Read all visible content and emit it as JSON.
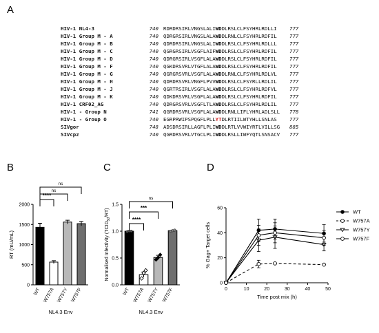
{
  "panel_letters": {
    "a": "A",
    "b": "B",
    "c": "C",
    "d": "D"
  },
  "panelA": {
    "rows": [
      {
        "name": "HIV-1 NL4-3",
        "start": "740",
        "pre": "RDRDRSIRLVNGSLALI",
        "mark": "WD",
        "post": "DLRSLCLFSYHRLRDLLI",
        "end": "777",
        "red": false
      },
      {
        "name": "HIV-1 Group M - A",
        "start": "740",
        "pre": "QDRGRSIRLVNGSLALA",
        "mark": "WD",
        "post": "DLRNLCLFSYHRLRDFIL",
        "end": "777",
        "red": false
      },
      {
        "name": "HIV-1 Group M - B",
        "start": "740",
        "pre": "QDRDRSIRLVNGSLALI",
        "mark": "WD",
        "post": "DLRSLCLFSYHRLRDLLL",
        "end": "777",
        "red": false
      },
      {
        "name": "HIV-1 Group M - C",
        "start": "740",
        "pre": "QGRGRSIRLVSGFLAIF",
        "mark": "WD",
        "post": "DLRSLCLFSYHRLRDFIL",
        "end": "777",
        "red": false
      },
      {
        "name": "HIV-1 Group M - D",
        "start": "740",
        "pre": "QDRGRSIRLVSGFLALA",
        "mark": "WD",
        "post": "DLRSLCLFSYHRLRDFIL",
        "end": "777",
        "red": false
      },
      {
        "name": "HIV-1 Group M - F",
        "start": "740",
        "pre": "QGKDRSVRLVTGFLALA",
        "mark": "WD",
        "post": "DLRSLCLFSYHRLRDFIL",
        "end": "777",
        "red": false
      },
      {
        "name": "HIV-1 Group M - G",
        "start": "740",
        "pre": "QGRGRSVRLVSGFLALA",
        "mark": "WD",
        "post": "DLRNLCLFSYHRLRDLVL",
        "end": "777",
        "red": false
      },
      {
        "name": "HIV-1 Group M - H",
        "start": "740",
        "pre": "QDRDRSVRLVNGFLPVV",
        "mark": "WD",
        "post": "DLRSLCLFSYRLLRDLIL",
        "end": "777",
        "red": false
      },
      {
        "name": "HIV-1 Group M - J",
        "start": "740",
        "pre": "QGRTRSIRLVSGFLALA",
        "mark": "WD",
        "post": "DLRSLCLFSYHRLRDFVL",
        "end": "777",
        "red": false
      },
      {
        "name": "HIV-1 Group M - K",
        "start": "740",
        "pre": "QDKDRSVRLVSGFLALA",
        "mark": "WD",
        "post": "DLRSLCLFSYHRLRDFIL",
        "end": "777",
        "red": false
      },
      {
        "name": "HIV-1 CRF02_AG",
        "start": "740",
        "pre": "QDRGRSVRLVSGFLTLA",
        "mark": "WD",
        "post": "DLRSLCLFSYHRLRDLIL",
        "end": "777",
        "red": false
      },
      {
        "name": "HIV-1 - Group N",
        "start": "741",
        "pre": "QGRDRSVRLVSGFLALA",
        "mark": "WD",
        "post": "DLRNLLIFLYHRLADLSLL",
        "end": "778",
        "red": false
      },
      {
        "name": "HIV-1 - Group O",
        "start": "740",
        "pre": "EGRPRWIPSPQGFLPLL",
        "mark": "YT",
        "post": "DLRTIILWTYHLLSNLAS",
        "end": "777",
        "red": true
      },
      {
        "name": "SIVgor",
        "start": "748",
        "pre": "ADSDRSIRLLAGFLPLI",
        "mark": "WD",
        "post": "DLRTLVVWIYRTLVILLSG",
        "end": "885",
        "red": false
      },
      {
        "name": "SIVcpz",
        "start": "740",
        "pre": "QGRDRSVRLVTGCLPLI",
        "mark": "WD",
        "post": "DLRSLLIWFYQTLSNSACV",
        "end": "777",
        "red": false
      }
    ]
  },
  "panelB": {
    "chart_data": {
      "type": "bar",
      "categories": [
        "WT",
        "W757A",
        "W757Y",
        "W757F"
      ],
      "values": [
        1430,
        565,
        1560,
        1520
      ],
      "errors": [
        100,
        35,
        45,
        55
      ],
      "ylabel": "RT (mU/mL)",
      "xlabel": "NL4.3 Env",
      "ylim": [
        0,
        2000
      ],
      "yticks": [
        "0",
        "500",
        "1000",
        "1500",
        "2000"
      ],
      "bar_colors": [
        "#000000",
        "#ffffff",
        "#b8b8b8",
        "#6e6e6e"
      ],
      "significance": [
        {
          "from": 0,
          "to": 1,
          "label": "****"
        },
        {
          "from": 0,
          "to": 2,
          "label": "ns"
        },
        {
          "from": 0,
          "to": 3,
          "label": "ns"
        }
      ]
    }
  },
  "panelC": {
    "chart_data": {
      "type": "bar",
      "categories": [
        "WT",
        "W757A",
        "W757Y",
        "W757F"
      ],
      "values": [
        1.0,
        0.19,
        0.51,
        1.01
      ],
      "errors": [
        0.01,
        0.05,
        0.04,
        0.01
      ],
      "points": [
        [
          0.99,
          1.0,
          1.0
        ],
        [
          0.12,
          0.22,
          0.27
        ],
        [
          0.47,
          0.51,
          0.56
        ],
        [
          1.0,
          1.01,
          1.02
        ]
      ],
      "ylabel_main": "Normalised Infectivity (TCID",
      "ylabel_sub": "50",
      "ylabel_end": "/RT)",
      "xlabel": "NL4.3 Env",
      "ylim": [
        0,
        1.5
      ],
      "yticks": [
        "0.0",
        "0.5",
        "1.0",
        "1.5"
      ],
      "bar_colors": [
        "#000000",
        "#ffffff",
        "#b8b8b8",
        "#6e6e6e"
      ],
      "significance": [
        {
          "from": 0,
          "to": 1,
          "label": "****"
        },
        {
          "from": 0,
          "to": 2,
          "label": "***"
        },
        {
          "from": 0,
          "to": 3,
          "label": "ns"
        }
      ]
    }
  },
  "panelD": {
    "chart_data": {
      "type": "line",
      "x": [
        0,
        16,
        24,
        48
      ],
      "series": [
        {
          "name": "WT",
          "values": [
            0,
            42,
            43,
            39.5
          ],
          "errors": [
            0,
            9,
            8,
            7
          ],
          "marker": "filled-circle",
          "dash": false
        },
        {
          "name": "W757A",
          "values": [
            0,
            15,
            15.5,
            14.5
          ],
          "errors": [
            0,
            3,
            0,
            0
          ],
          "marker": "open-circle",
          "dash": true
        },
        {
          "name": "W757Y",
          "values": [
            0,
            34,
            36.5,
            30.5
          ],
          "errors": [
            0,
            9,
            9,
            5
          ],
          "marker": "open-triangle",
          "dash": false
        },
        {
          "name": "W757F",
          "values": [
            0,
            38,
            40,
            36
          ],
          "errors": [
            0,
            8,
            8,
            6
          ],
          "marker": "open-circle",
          "dash": false
        }
      ],
      "ylabel": "% Gag+ Target cells",
      "xlabel": "Time post mix (h)",
      "xlim": [
        0,
        50
      ],
      "ylim": [
        0,
        60
      ],
      "xticks": [
        "0",
        "10",
        "20",
        "30",
        "40",
        "50"
      ],
      "yticks": [
        "0",
        "20",
        "40",
        "60"
      ],
      "legend_position": "right"
    }
  }
}
